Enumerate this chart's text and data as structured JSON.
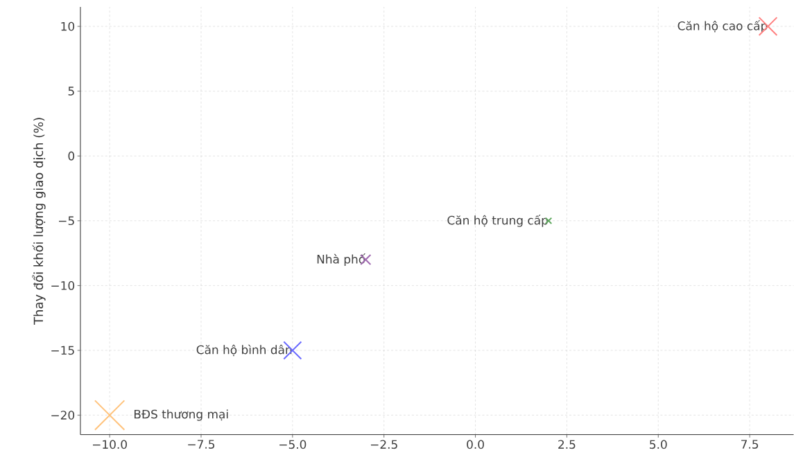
{
  "chart_data": {
    "type": "bubble",
    "ylabel": "Thay đổi khối lượng giao dịch (%)",
    "xlim": [
      -10.8,
      8.7
    ],
    "ylim": [
      -21.5,
      11.5
    ],
    "xticks": [
      {
        "value": -10,
        "label": "−10.0"
      },
      {
        "value": -7.5,
        "label": "−7.5"
      },
      {
        "value": -5,
        "label": "−5.0"
      },
      {
        "value": -2.5,
        "label": "−2.5"
      },
      {
        "value": 0,
        "label": "0.0"
      },
      {
        "value": 2.5,
        "label": "2.5"
      },
      {
        "value": 5,
        "label": "5.0"
      },
      {
        "value": 7.5,
        "label": "7.5"
      }
    ],
    "yticks": [
      {
        "value": -20,
        "label": "−20"
      },
      {
        "value": -15,
        "label": "−15"
      },
      {
        "value": -10,
        "label": "−10"
      },
      {
        "value": -5,
        "label": "−5"
      },
      0,
      5,
      10
    ],
    "grid": true,
    "legend": false,
    "marker": "cross",
    "series": [
      {
        "name": "Căn hộ cao cấp",
        "color": "#ff7f7f",
        "x": [
          8
        ],
        "values": [
          10
        ],
        "sizes": [
          0.37
        ]
      },
      {
        "name": "Căn hộ trung cấp",
        "color": "#5fa85f",
        "x": [
          2
        ],
        "values": [
          -5
        ],
        "sizes": [
          0.04
        ]
      },
      {
        "name": "Nhà phố",
        "color": "#a06ab0",
        "x": [
          -3
        ],
        "values": [
          -8
        ],
        "sizes": [
          0.11
        ]
      },
      {
        "name": "Căn hộ bình dân",
        "color": "#6a6aff",
        "x": [
          -5
        ],
        "values": [
          -15
        ],
        "sizes": [
          0.35
        ]
      },
      {
        "name": "BĐS thương mại",
        "color": "#ffc27a",
        "x": [
          -10
        ],
        "values": [
          -20
        ],
        "sizes": [
          1
        ]
      }
    ]
  }
}
